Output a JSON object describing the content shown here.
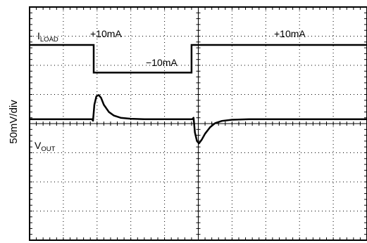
{
  "chart_data": {
    "type": "line",
    "ylabel": "50mV/div",
    "divisions": {
      "x": 10,
      "y": 8
    },
    "series": [
      {
        "name_main": "I",
        "name_sub": "LOAD",
        "annotations": [
          "+10mA",
          "−10mA",
          "+10mA"
        ],
        "points": [
          [
            0,
            1
          ],
          [
            1.9,
            1
          ],
          [
            1.9,
            0
          ],
          [
            4.8,
            0
          ],
          [
            4.8,
            1
          ],
          [
            10,
            1
          ]
        ],
        "y_div_range": [
          5.5,
          6.5
        ]
      },
      {
        "name_main": "V",
        "name_sub": "OUT",
        "points": [
          [
            0,
            0
          ],
          [
            1.85,
            0
          ],
          [
            1.88,
            -0.06
          ],
          [
            1.92,
            0.6
          ],
          [
            1.98,
            0.95
          ],
          [
            2.05,
            1.0
          ],
          [
            2.12,
            0.88
          ],
          [
            2.2,
            0.6
          ],
          [
            2.35,
            0.3
          ],
          [
            2.5,
            0.15
          ],
          [
            2.7,
            0.06
          ],
          [
            3.0,
            0.02
          ],
          [
            3.4,
            0
          ],
          [
            4.82,
            0
          ],
          [
            4.86,
            0.06
          ],
          [
            4.9,
            -0.55
          ],
          [
            4.96,
            -0.9
          ],
          [
            5.02,
            -1.0
          ],
          [
            5.1,
            -0.85
          ],
          [
            5.2,
            -0.6
          ],
          [
            5.35,
            -0.33
          ],
          [
            5.5,
            -0.16
          ],
          [
            5.7,
            -0.07
          ],
          [
            6.0,
            -0.02
          ],
          [
            6.5,
            0
          ],
          [
            10,
            0
          ]
        ],
        "baseline_div": 3.85,
        "peak_div": 0.83
      }
    ]
  }
}
